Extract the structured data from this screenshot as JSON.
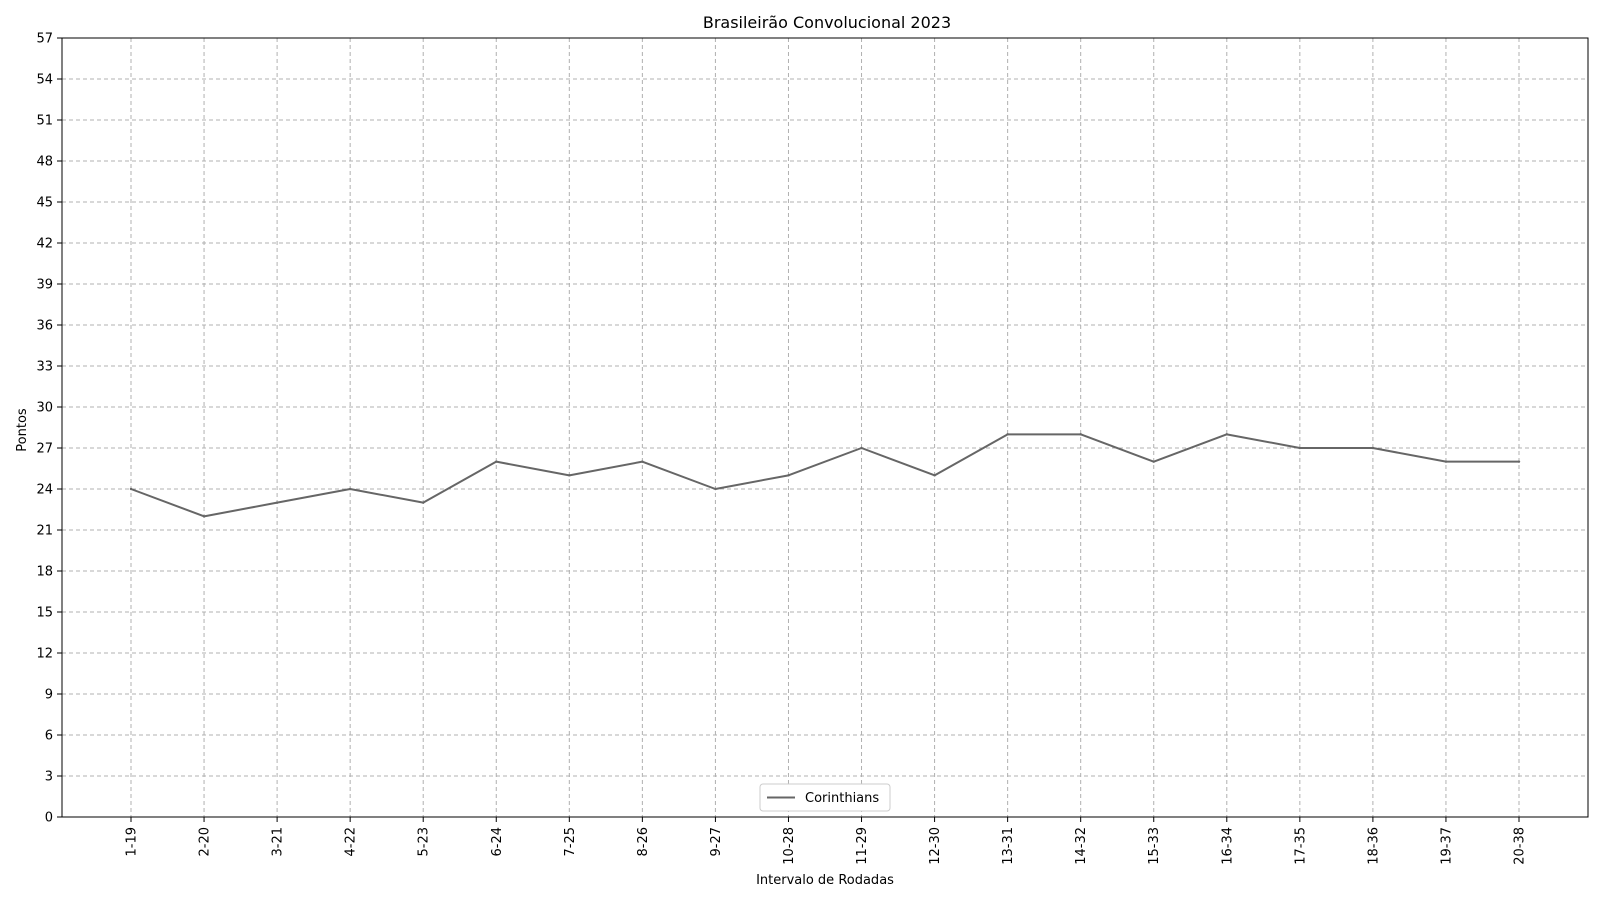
{
  "chart_data": {
    "type": "line",
    "title": "Brasileirão Convolucional 2023",
    "xlabel": "Intervalo de Rodadas",
    "ylabel": "Pontos",
    "categories": [
      "1-19",
      "2-20",
      "3-21",
      "4-22",
      "5-23",
      "6-24",
      "7-25",
      "8-26",
      "9-27",
      "10-28",
      "11-29",
      "12-30",
      "13-31",
      "14-32",
      "15-33",
      "16-34",
      "17-35",
      "18-36",
      "19-37",
      "20-38"
    ],
    "series": [
      {
        "name": "Corinthians",
        "color": "#666666",
        "values": [
          24,
          22,
          23,
          24,
          23,
          26,
          25,
          26,
          24,
          25,
          27,
          25,
          28,
          28,
          26,
          28,
          27,
          27,
          26,
          26
        ]
      }
    ],
    "ylim": [
      0,
      57
    ],
    "yticks": [
      0,
      3,
      6,
      9,
      12,
      15,
      18,
      21,
      24,
      27,
      30,
      33,
      36,
      39,
      42,
      45,
      48,
      51,
      54,
      57
    ],
    "grid": true,
    "legend_position": "lower-center"
  }
}
